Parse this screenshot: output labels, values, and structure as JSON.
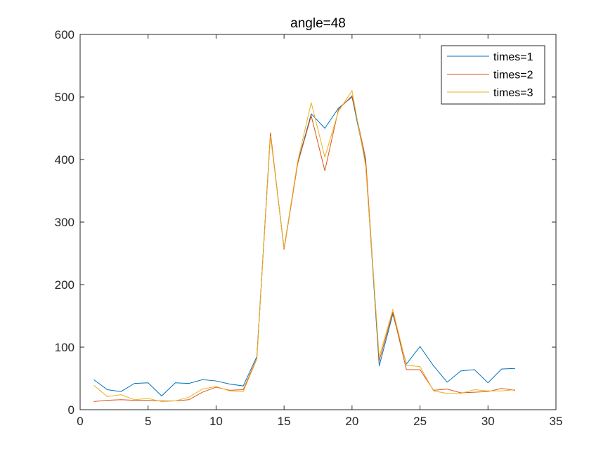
{
  "chart_data": {
    "type": "line",
    "title": "angle=48",
    "xlabel": "",
    "ylabel": "",
    "xlim": [
      0,
      35
    ],
    "ylim": [
      0,
      600
    ],
    "xticks": [
      0,
      5,
      10,
      15,
      20,
      25,
      30,
      35
    ],
    "yticks": [
      0,
      100,
      200,
      300,
      400,
      500,
      600
    ],
    "grid": false,
    "legend_position": "top-right",
    "x": [
      1,
      2,
      3,
      4,
      5,
      6,
      7,
      8,
      9,
      10,
      11,
      12,
      13,
      14,
      15,
      16,
      17,
      18,
      19,
      20,
      21,
      22,
      23,
      24,
      25,
      26,
      27,
      28,
      29,
      30,
      31,
      32
    ],
    "series": [
      {
        "name": "times=1",
        "color": "#0072BD",
        "values": [
          48,
          32,
          29,
          42,
          43,
          22,
          43,
          42,
          48,
          46,
          41,
          38,
          85,
          440,
          258,
          395,
          473,
          450,
          482,
          500,
          395,
          70,
          153,
          73,
          101,
          70,
          44,
          62,
          64,
          43,
          65,
          66
        ]
      },
      {
        "name": "times=2",
        "color": "#D95319",
        "values": [
          13,
          15,
          16,
          15,
          15,
          14,
          14,
          16,
          28,
          36,
          31,
          32,
          82,
          443,
          256,
          393,
          470,
          382,
          480,
          502,
          402,
          78,
          156,
          64,
          64,
          31,
          33,
          27,
          28,
          29,
          34,
          31
        ]
      },
      {
        "name": "times=3",
        "color": "#EDB120",
        "values": [
          39,
          21,
          24,
          16,
          18,
          13,
          14,
          20,
          33,
          37,
          30,
          29,
          81,
          438,
          258,
          397,
          491,
          404,
          477,
          510,
          390,
          84,
          160,
          71,
          69,
          30,
          26,
          26,
          32,
          30,
          30,
          32
        ]
      }
    ]
  }
}
